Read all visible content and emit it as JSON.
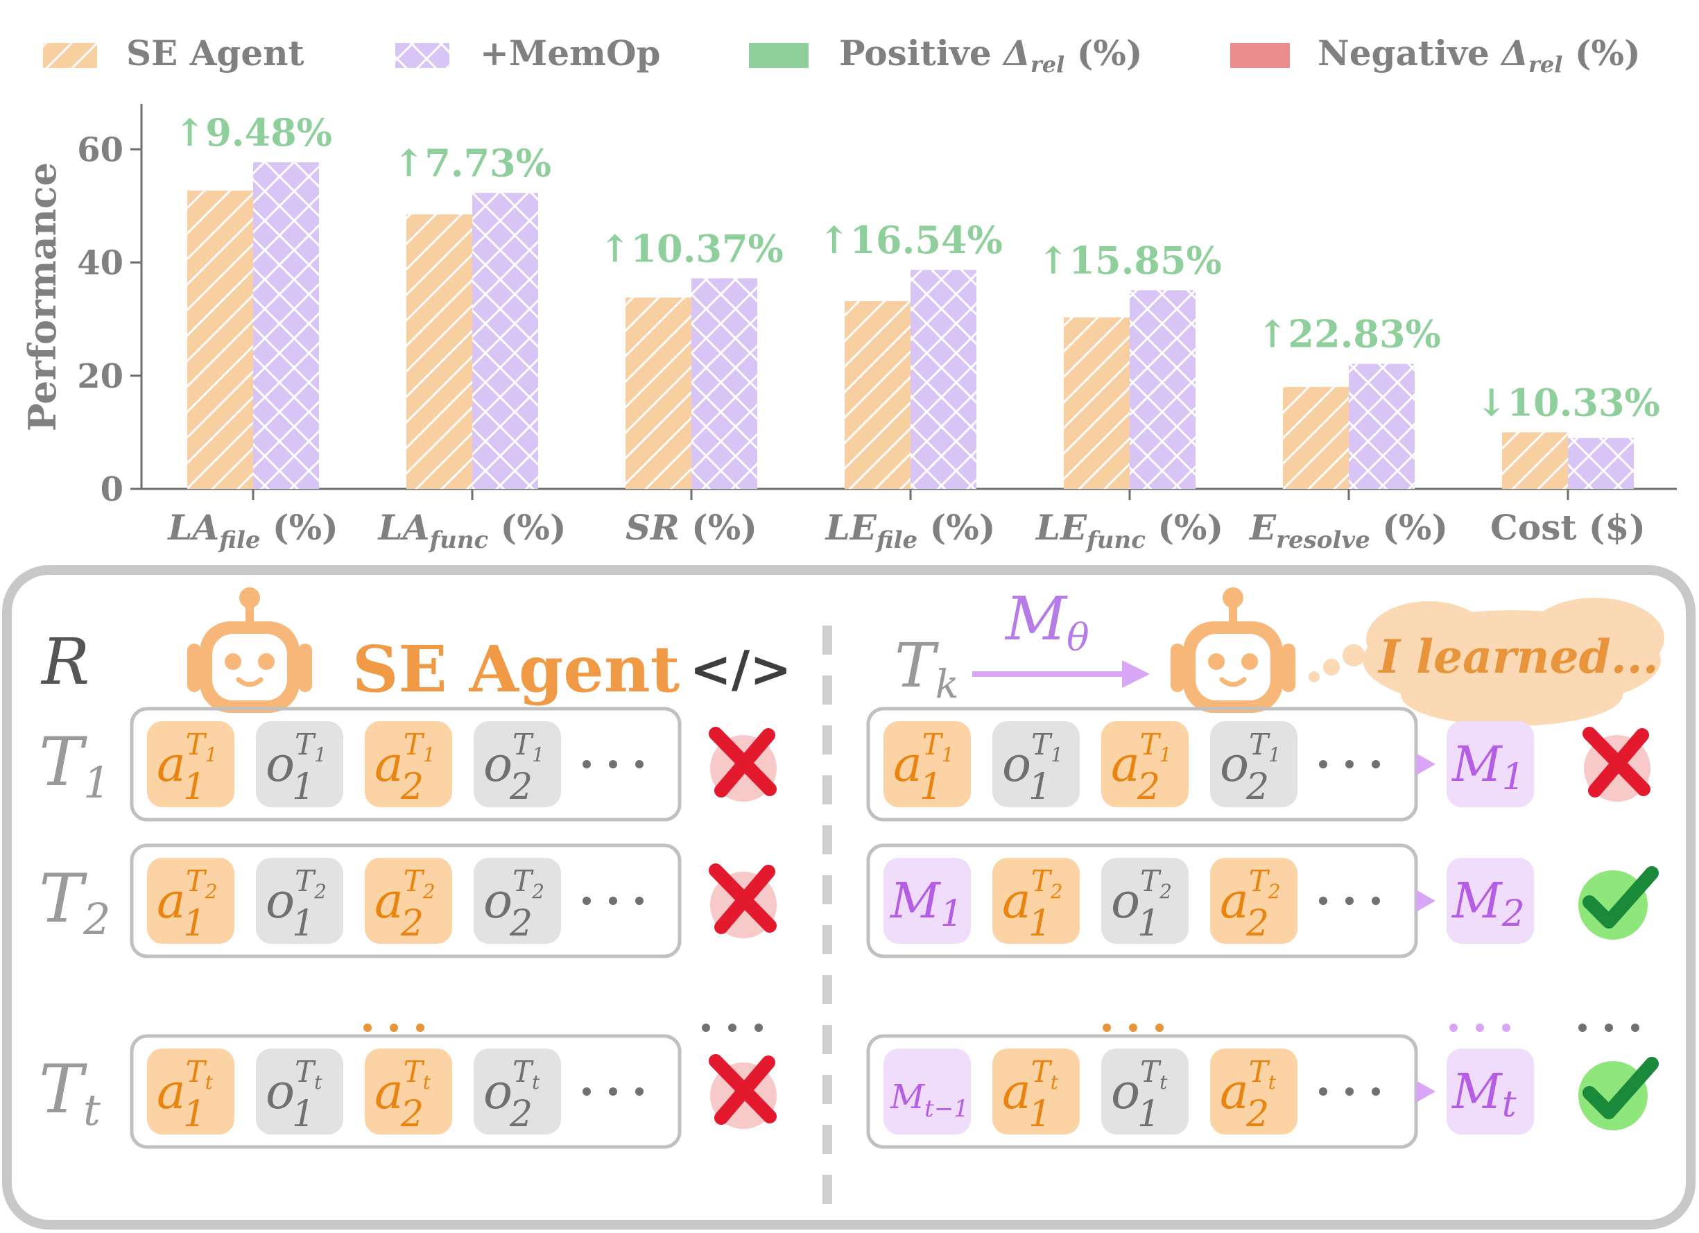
{
  "legend": {
    "se_agent": "SE Agent",
    "memop": "+MemOp",
    "positive_base": "Positive ",
    "negative_base": "Negative ",
    "delta": "Δ",
    "delta_sub": "rel",
    "unit": " (%)"
  },
  "colors": {
    "se_agent": "#f8cfa0",
    "memop": "#d9c4f6",
    "positive": "#8fcf9c",
    "negative": "#ec8c8c",
    "positive_text": "#8fcf9c",
    "orange_text": "#e8943a",
    "purple_text": "#b57be6",
    "gray_text": "#808080"
  },
  "chart_data": {
    "type": "bar",
    "ylabel": "Performance",
    "ylim": [
      0,
      68
    ],
    "yticks": [
      0,
      20,
      40,
      60
    ],
    "categories": [
      {
        "main": "LA",
        "sub": "file",
        "unit": " (%)"
      },
      {
        "main": "LA",
        "sub": "func",
        "unit": " (%)"
      },
      {
        "main": "SR",
        "sub": "",
        "unit": " (%)"
      },
      {
        "main": "LE",
        "sub": "file",
        "unit": " (%)"
      },
      {
        "main": "LE",
        "sub": "func",
        "unit": " (%)"
      },
      {
        "main": "E",
        "sub": "resolve",
        "unit": " (%)"
      },
      {
        "main": "",
        "sub": "",
        "unit": "Cost ($)"
      }
    ],
    "series": [
      {
        "name": "SE Agent",
        "values": [
          52.7,
          48.5,
          33.8,
          33.2,
          30.3,
          18.0,
          10.0
        ]
      },
      {
        "name": "+MemOp",
        "values": [
          57.7,
          52.3,
          37.2,
          38.7,
          35.1,
          22.1,
          9.0
        ]
      }
    ],
    "annotations": [
      {
        "arrow": "↑",
        "text": "9.48%"
      },
      {
        "arrow": "↑",
        "text": "7.73%"
      },
      {
        "arrow": "↑",
        "text": "10.37%"
      },
      {
        "arrow": "↑",
        "text": "16.54%"
      },
      {
        "arrow": "↑",
        "text": "15.85%"
      },
      {
        "arrow": "↑",
        "text": "22.83%"
      },
      {
        "arrow": "↓",
        "text": "10.33%"
      }
    ]
  },
  "diagram": {
    "repo_symbol": "R",
    "agent_title": "SE Agent",
    "code_symbol": "</>",
    "task_k": "T",
    "task_k_sub": "k",
    "mem_model": "M",
    "mem_model_sub": "θ",
    "thought": "I learned...",
    "ellipsis": "• • •",
    "rows": [
      {
        "task_sub": "1",
        "left_items": [
          [
            "a",
            "1",
            "T",
            "1"
          ],
          [
            "o",
            "1",
            "T",
            "1"
          ],
          [
            "a",
            "2",
            "T",
            "1"
          ],
          [
            "o",
            "2",
            "T",
            "1"
          ]
        ],
        "left_result": "fail",
        "right_items": [
          [
            "a",
            "1",
            "T",
            "1"
          ],
          [
            "o",
            "1",
            "T",
            "1"
          ],
          [
            "a",
            "2",
            "T",
            "1"
          ],
          [
            "o",
            "2",
            "T",
            "1"
          ]
        ],
        "right_mem": "1",
        "right_result": "fail"
      },
      {
        "task_sub": "2",
        "left_items": [
          [
            "a",
            "1",
            "T",
            "2"
          ],
          [
            "o",
            "1",
            "T",
            "2"
          ],
          [
            "a",
            "2",
            "T",
            "2"
          ],
          [
            "o",
            "2",
            "T",
            "2"
          ]
        ],
        "left_result": "fail",
        "right_items": [
          [
            "M",
            "1",
            "",
            ""
          ],
          [
            "a",
            "1",
            "T",
            "2"
          ],
          [
            "o",
            "1",
            "T",
            "2"
          ],
          [
            "a",
            "2",
            "T",
            "2"
          ]
        ],
        "right_mem": "2",
        "right_result": "pass"
      },
      {
        "task_sub": "t",
        "left_items": [
          [
            "a",
            "1",
            "T",
            "t"
          ],
          [
            "o",
            "1",
            "T",
            "t"
          ],
          [
            "a",
            "2",
            "T",
            "t"
          ],
          [
            "o",
            "2",
            "T",
            "t"
          ]
        ],
        "left_result": "fail",
        "right_items": [
          [
            "M",
            "t−1",
            "",
            ""
          ],
          [
            "a",
            "1",
            "T",
            "t"
          ],
          [
            "o",
            "1",
            "T",
            "t"
          ],
          [
            "a",
            "2",
            "T",
            "t"
          ]
        ],
        "right_mem": "t",
        "right_result": "pass"
      }
    ]
  }
}
